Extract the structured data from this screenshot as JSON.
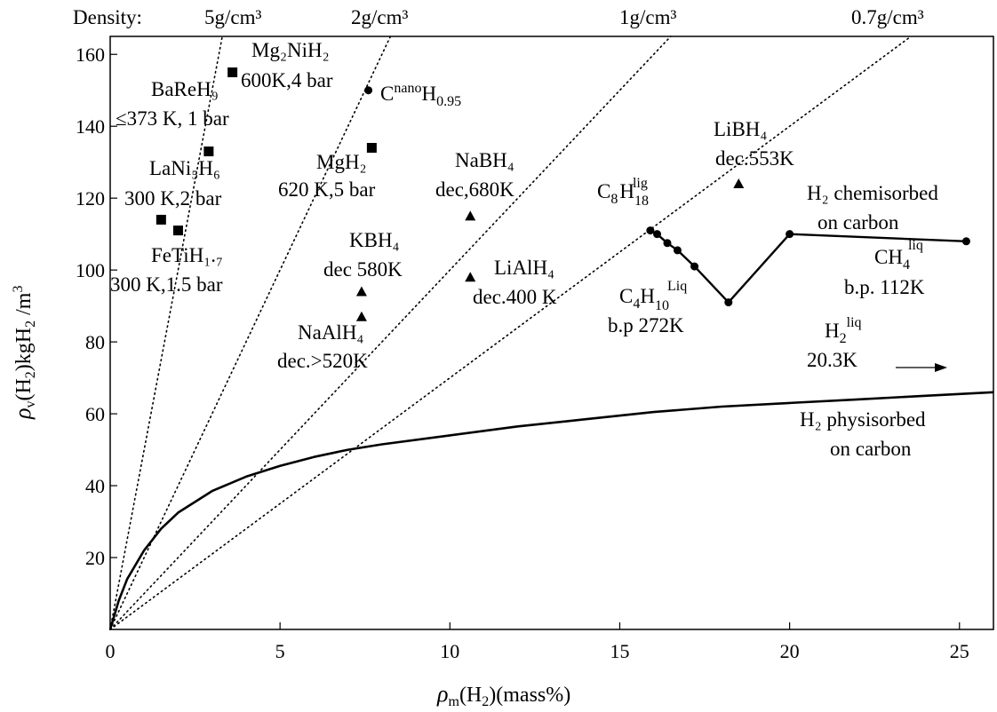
{
  "chart_data": {
    "type": "scatter",
    "xlabel": "ρm(H2)(mass%)",
    "ylabel": "ρv(H2)kgH2/m3",
    "xlim": [
      0,
      26
    ],
    "ylim": [
      0,
      165
    ],
    "x_ticks": [
      0,
      5,
      10,
      15,
      20,
      25
    ],
    "y_ticks": [
      20,
      40,
      60,
      80,
      100,
      120,
      140,
      160
    ],
    "grid": false,
    "density_label": "Density:",
    "density_lines": [
      {
        "label": "5g/cm³",
        "density": 5.0
      },
      {
        "label": "2g/cm³",
        "density": 2.0
      },
      {
        "label": "1g/cm³",
        "density": 1.0
      },
      {
        "label": "0.7g/cm³",
        "density": 0.7
      }
    ],
    "squares": [
      {
        "name": "Mg2NiH2",
        "x": 3.6,
        "y": 155
      },
      {
        "name": "BaReH9",
        "x": 2.9,
        "y": 133
      },
      {
        "name": "MgH2",
        "x": 7.7,
        "y": 134
      },
      {
        "name": "LaNi5H6",
        "x": 1.5,
        "y": 114
      },
      {
        "name": "FeTiH1.7",
        "x": 2.0,
        "y": 111
      }
    ],
    "triangles": [
      {
        "name": "NaBH4",
        "x": 10.6,
        "y": 115
      },
      {
        "name": "KBH4",
        "x": 7.4,
        "y": 94
      },
      {
        "name": "NaAlH4",
        "x": 7.4,
        "y": 87
      },
      {
        "name": "LiAlH4",
        "x": 10.6,
        "y": 98
      },
      {
        "name": "LiBH4",
        "x": 18.5,
        "y": 124
      }
    ],
    "circles": [
      {
        "name": "CnanoH0.95",
        "x": 7.6,
        "y": 150
      }
    ],
    "chemisorbed_series": {
      "name": "H2 chemisorbed on carbon",
      "x": [
        15.9,
        16.1,
        16.4,
        16.7,
        17.2,
        18.2,
        20.0,
        25.2
      ],
      "y": [
        111,
        110,
        107.5,
        105.5,
        101,
        91,
        110,
        108
      ]
    },
    "physisorbed_series": {
      "name": "H2 physisorbed on carbon",
      "x": [
        0,
        0.25,
        0.5,
        1,
        1.5,
        2,
        3,
        4,
        5,
        6,
        7,
        8,
        10,
        12,
        14,
        16,
        18,
        20,
        22,
        24,
        26
      ],
      "y": [
        0,
        8,
        14,
        22,
        28,
        32.5,
        38.5,
        42.5,
        45.5,
        48,
        50,
        51.5,
        54,
        56.5,
        58.5,
        60.5,
        62,
        63,
        64,
        65,
        66
      ]
    },
    "annotations": {
      "mg2nih2": {
        "name": "Mg₂NiH₂",
        "cond": "600K,4 bar"
      },
      "bareh9": {
        "name": "BaReH₉",
        "cond": "≤373 K, 1 bar"
      },
      "cnano": {
        "base": "C",
        "sup": "nano",
        "rest": "H",
        "sub": "0.95"
      },
      "mgh2": {
        "name": "MgH₂",
        "cond": "620 K,5 bar"
      },
      "nabh4": {
        "name": "NaBH₄",
        "cond": "dec,680K"
      },
      "lani5h6": {
        "name": "LaNi₅H₆",
        "cond": "300 K,2 bar"
      },
      "fetih": {
        "name": "FeTiH₁.₇",
        "cond": "300 K,1.5 bar"
      },
      "kbh4": {
        "name": "KBH₄",
        "cond": "dec 580K"
      },
      "naalh4": {
        "name": "NaAlH₄",
        "cond": "dec.>520K"
      },
      "lialh4": {
        "name": "LiAlH₄",
        "cond": "dec.400 K"
      },
      "libh4": {
        "name": "LiBH₄",
        "cond": "dec.553K"
      },
      "c8h18": {
        "base": "C",
        "sub1": "8",
        "mid": "H",
        "sub2": "18",
        "sup": "lig"
      },
      "c4h10": {
        "base": "C",
        "sub1": "4",
        "mid": "H",
        "sub2": "10",
        "sup": "Liq",
        "cond": "b.p 272K"
      },
      "ch4": {
        "base": "CH",
        "sub": "4",
        "sup": "liq",
        "cond": "b.p. 112K"
      },
      "h2liq": {
        "base": "H",
        "sub": "2",
        "sup": "liq",
        "cond": "20.3K"
      },
      "chemisorbed": {
        "line1": "H₂ chemisorbed",
        "line2": "on carbon"
      },
      "physisorbed": {
        "line1": "H₂ physisorbed",
        "line2": "on carbon"
      }
    }
  }
}
